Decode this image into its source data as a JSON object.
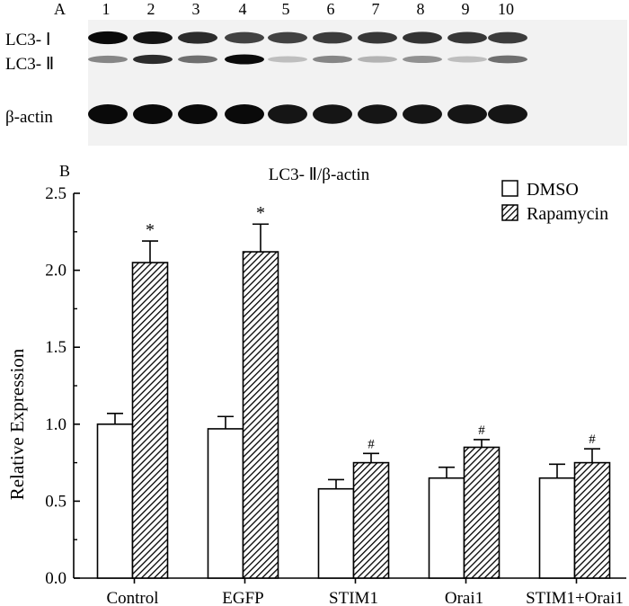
{
  "panel_a": {
    "label": "A",
    "lanes": [
      "1",
      "2",
      "3",
      "4",
      "5",
      "6",
      "7",
      "8",
      "9",
      "10"
    ],
    "rows": [
      {
        "label": "LC3- Ⅰ",
        "intensity": [
          1.0,
          0.95,
          0.85,
          0.75,
          0.75,
          0.78,
          0.8,
          0.82,
          0.8,
          0.78
        ]
      },
      {
        "label": "LC3- Ⅱ",
        "intensity": [
          0.45,
          0.85,
          0.55,
          1.0,
          0.2,
          0.45,
          0.25,
          0.4,
          0.2,
          0.55
        ]
      },
      {
        "label": "β-actin",
        "intensity": [
          1.0,
          1.0,
          1.0,
          1.0,
          0.95,
          0.95,
          0.95,
          0.95,
          0.95,
          0.95
        ]
      }
    ]
  },
  "chart_data": {
    "type": "bar",
    "panel_label": "B",
    "title": "LC3- Ⅱ/β-actin",
    "ylabel": "Relative Expression",
    "xlabel": "",
    "ylim": [
      0,
      2.5
    ],
    "yticks": [
      "0.0",
      "0.5",
      "1.0",
      "1.5",
      "2.0",
      "2.5"
    ],
    "categories": [
      "Control",
      "EGFP",
      "STIM1",
      "Orai1",
      "STIM1+Orai1"
    ],
    "series": [
      {
        "name": "DMSO",
        "fill": "white",
        "values": [
          1.0,
          0.97,
          0.58,
          0.65,
          0.65
        ],
        "errors": [
          0.07,
          0.08,
          0.06,
          0.07,
          0.09
        ],
        "marks": [
          "",
          "",
          "",
          "",
          ""
        ]
      },
      {
        "name": "Rapamycin",
        "fill": "hatched",
        "values": [
          2.05,
          2.12,
          0.75,
          0.85,
          0.75
        ],
        "errors": [
          0.14,
          0.18,
          0.06,
          0.05,
          0.09
        ],
        "marks": [
          "*",
          "*",
          "#",
          "#",
          "#"
        ]
      }
    ],
    "legend_position": "top-right"
  }
}
